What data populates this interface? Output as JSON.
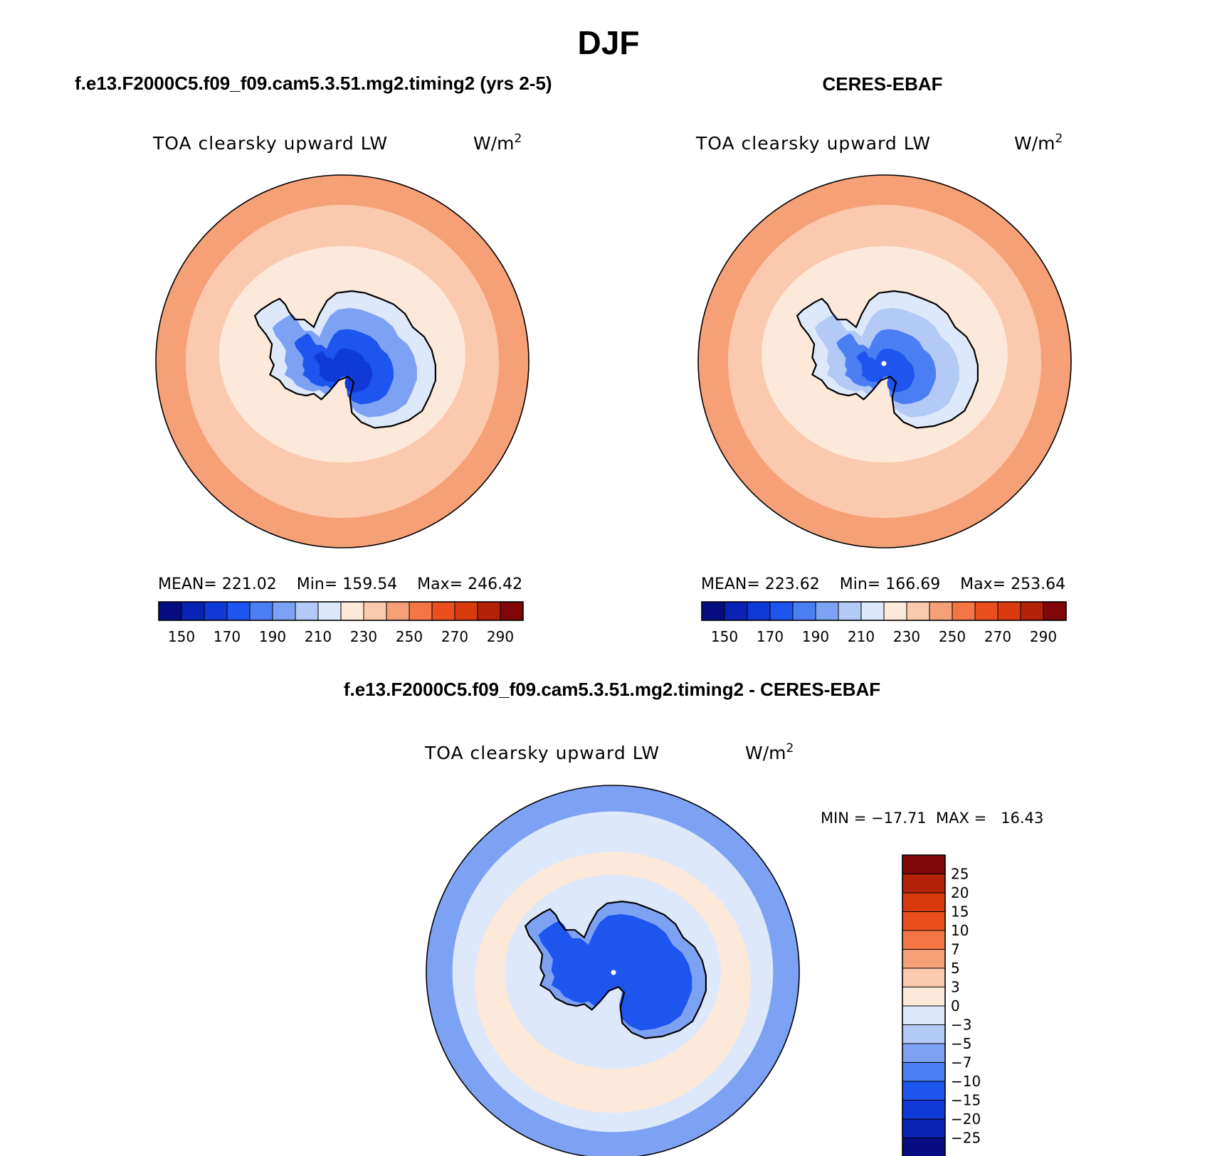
{
  "page_title": "DJF",
  "palettes": {
    "abs": [
      "#050d80",
      "#0a23b4",
      "#0f3ad8",
      "#1e55ee",
      "#4b7ef2",
      "#7ea2f3",
      "#b3c9f6",
      "#dde8fa",
      "#fde9da",
      "#fbc9ae",
      "#f6a078",
      "#f47645",
      "#ea4f1c",
      "#d93b0e",
      "#b32209",
      "#7f0707"
    ],
    "diff": [
      "#050d80",
      "#0a23b4",
      "#0f3ad8",
      "#1e55ee",
      "#4b7ef2",
      "#7ea2f3",
      "#b3c9f6",
      "#dde8fa",
      "#fde9da",
      "#fbc9ae",
      "#f6a078",
      "#f47645",
      "#ea4f1c",
      "#d93b0e",
      "#b32209",
      "#7f0707"
    ]
  },
  "chart_data": [
    {
      "type": "heatmap",
      "projection": "south polar stereographic",
      "title": "f.e13.F2000C5.f09_f09.cam5.3.51.mg2.timing2 (yrs 2-5)",
      "variable_label": "TOA clearsky upward LW",
      "units_base": "W/m",
      "units_exp": "2",
      "stats_text": "MEAN= 221.02    Min= 159.54    Max= 246.42",
      "stats": {
        "mean": 221.02,
        "min": 159.54,
        "max": 246.42
      },
      "colorbar": {
        "orientation": "horizontal",
        "levels": [
          145,
          150,
          160,
          170,
          180,
          190,
          200,
          210,
          220,
          230,
          240,
          250,
          260,
          270,
          280,
          290
        ],
        "tick_labels": [
          "150",
          "170",
          "190",
          "210",
          "230",
          "250",
          "270",
          "290"
        ]
      },
      "field": {
        "interior": 163,
        "ice_edge": 195,
        "near_coast": 210,
        "coast_ocean": 222,
        "southern_ocean": 233,
        "outer_ring": 243
      }
    },
    {
      "type": "heatmap",
      "projection": "south polar stereographic",
      "title": "CERES-EBAF",
      "variable_label": "TOA clearsky upward LW",
      "units_base": "W/m",
      "units_exp": "2",
      "stats_text": "MEAN= 223.62    Min= 166.69    Max= 253.64",
      "stats": {
        "mean": 223.62,
        "min": 166.69,
        "max": 253.64
      },
      "colorbar": {
        "orientation": "horizontal",
        "levels": [
          145,
          150,
          160,
          170,
          180,
          190,
          200,
          210,
          220,
          230,
          240,
          250,
          260,
          270,
          280,
          290
        ],
        "tick_labels": [
          "150",
          "170",
          "190",
          "210",
          "230",
          "250",
          "270",
          "290"
        ]
      },
      "field": {
        "interior": 172,
        "ice_edge": 200,
        "near_coast": 212,
        "coast_ocean": 223,
        "southern_ocean": 236,
        "outer_ring": 247
      }
    },
    {
      "type": "heatmap",
      "projection": "south polar stereographic",
      "title": "f.e13.F2000C5.f09_f09.cam5.3.51.mg2.timing2 - CERES-EBAF",
      "variable_label": "TOA clearsky upward LW",
      "units_base": "W/m",
      "units_exp": "2",
      "stats_text": "MIN = −17.71  MAX =   16.43",
      "stats": {
        "min": -17.71,
        "max": 16.43
      },
      "colorbar": {
        "orientation": "vertical",
        "tick_labels": [
          "25",
          "20",
          "15",
          "10",
          "7",
          "5",
          "3",
          "0",
          "−3",
          "−5",
          "−7",
          "−10",
          "−15",
          "−20",
          "−25"
        ]
      },
      "field": {
        "interior": -11,
        "coast_band": -6,
        "ring_positive": 2,
        "ring_negative": -3,
        "outer": -6
      }
    }
  ]
}
